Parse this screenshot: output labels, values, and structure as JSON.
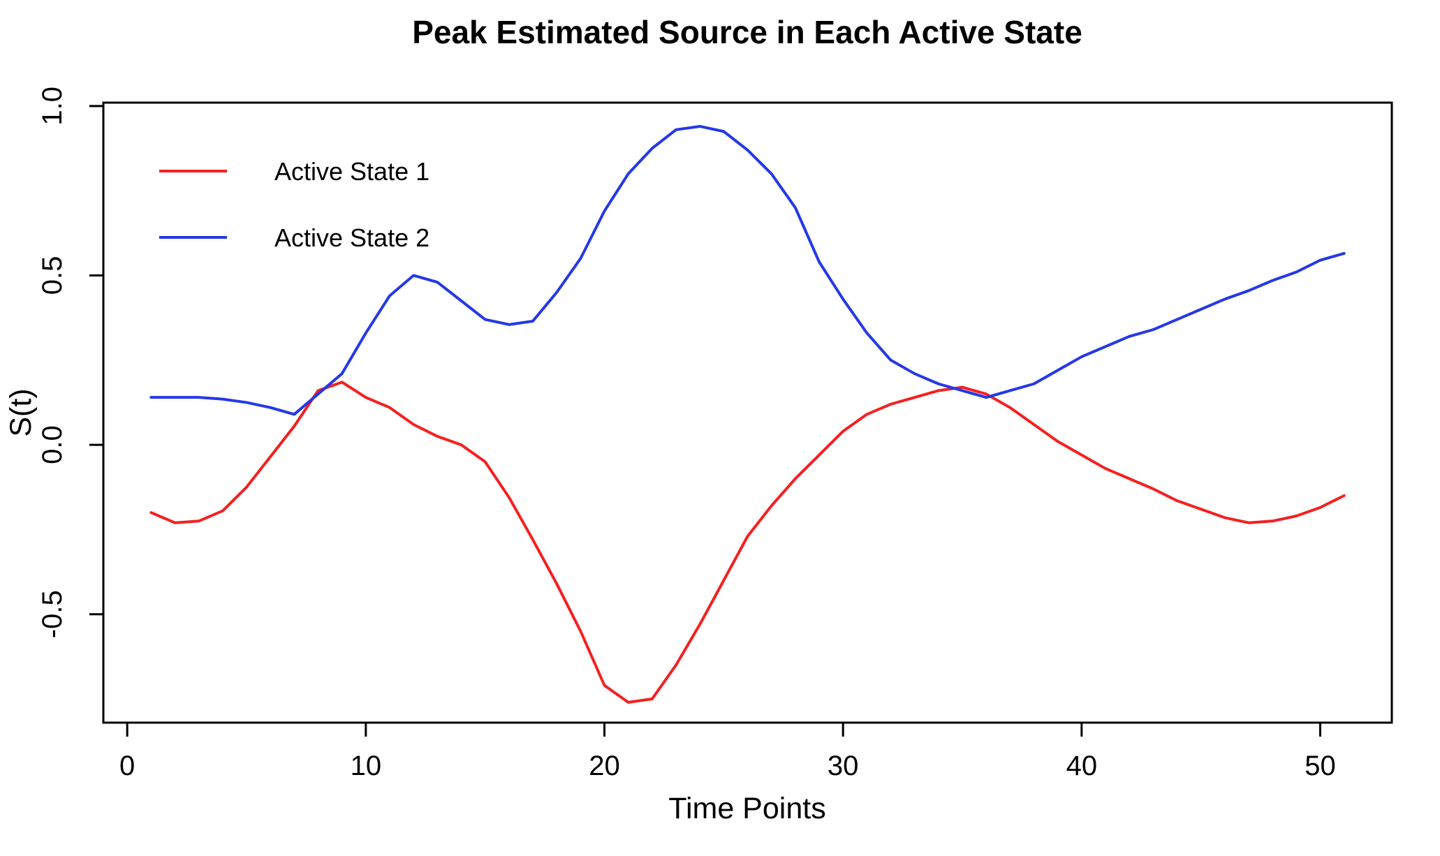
{
  "chart_data": {
    "type": "line",
    "title": "Peak Estimated Source in Each Active State",
    "xlabel": "Time Points",
    "ylabel": "S(t)",
    "grid": false,
    "legend_position": "top-left",
    "xlim": [
      -1,
      53
    ],
    "ylim": [
      -0.82,
      1.01
    ],
    "x_ticks": [
      {
        "value": 0,
        "label": "0"
      },
      {
        "value": 10,
        "label": "10"
      },
      {
        "value": 20,
        "label": "20"
      },
      {
        "value": 30,
        "label": "30"
      },
      {
        "value": 40,
        "label": "40"
      },
      {
        "value": 50,
        "label": "50"
      }
    ],
    "y_ticks": [
      {
        "value": -0.5,
        "label": "-0.5"
      },
      {
        "value": 0.0,
        "label": "0.0"
      },
      {
        "value": 0.5,
        "label": "0.5"
      },
      {
        "value": 1.0,
        "label": "1.0"
      }
    ],
    "x": [
      1,
      2,
      3,
      4,
      5,
      6,
      7,
      8,
      9,
      10,
      11,
      12,
      13,
      14,
      15,
      16,
      17,
      18,
      19,
      20,
      21,
      22,
      23,
      24,
      25,
      26,
      27,
      28,
      29,
      30,
      31,
      32,
      33,
      34,
      35,
      36,
      37,
      38,
      39,
      40,
      41,
      42,
      43,
      44,
      45,
      46,
      47,
      48,
      49,
      50,
      51
    ],
    "series": [
      {
        "name": "Active State 1",
        "color": "#f52020",
        "values": [
          -0.2,
          -0.23,
          -0.225,
          -0.195,
          -0.125,
          -0.035,
          0.055,
          0.16,
          0.185,
          0.14,
          0.11,
          0.06,
          0.025,
          0.0,
          -0.05,
          -0.155,
          -0.28,
          -0.41,
          -0.55,
          -0.71,
          -0.76,
          -0.75,
          -0.65,
          -0.53,
          -0.4,
          -0.27,
          -0.18,
          -0.1,
          -0.03,
          0.04,
          0.09,
          0.12,
          0.14,
          0.16,
          0.17,
          0.15,
          0.11,
          0.06,
          0.01,
          -0.03,
          -0.07,
          -0.1,
          -0.13,
          -0.165,
          -0.19,
          -0.215,
          -0.23,
          -0.225,
          -0.21,
          -0.185,
          -0.15
        ]
      },
      {
        "name": "Active State 2",
        "color": "#2438e8",
        "values": [
          0.14,
          0.14,
          0.14,
          0.135,
          0.125,
          0.11,
          0.09,
          0.15,
          0.21,
          0.33,
          0.44,
          0.5,
          0.48,
          0.425,
          0.37,
          0.355,
          0.365,
          0.45,
          0.55,
          0.69,
          0.8,
          0.875,
          0.93,
          0.94,
          0.925,
          0.87,
          0.8,
          0.7,
          0.54,
          0.43,
          0.33,
          0.25,
          0.21,
          0.18,
          0.16,
          0.14,
          0.16,
          0.18,
          0.22,
          0.26,
          0.29,
          0.32,
          0.34,
          0.37,
          0.4,
          0.43,
          0.455,
          0.485,
          0.51,
          0.545,
          0.565
        ]
      }
    ],
    "legend": {
      "entries": [
        {
          "label": "Active State 1"
        },
        {
          "label": "Active State 2"
        }
      ]
    }
  }
}
